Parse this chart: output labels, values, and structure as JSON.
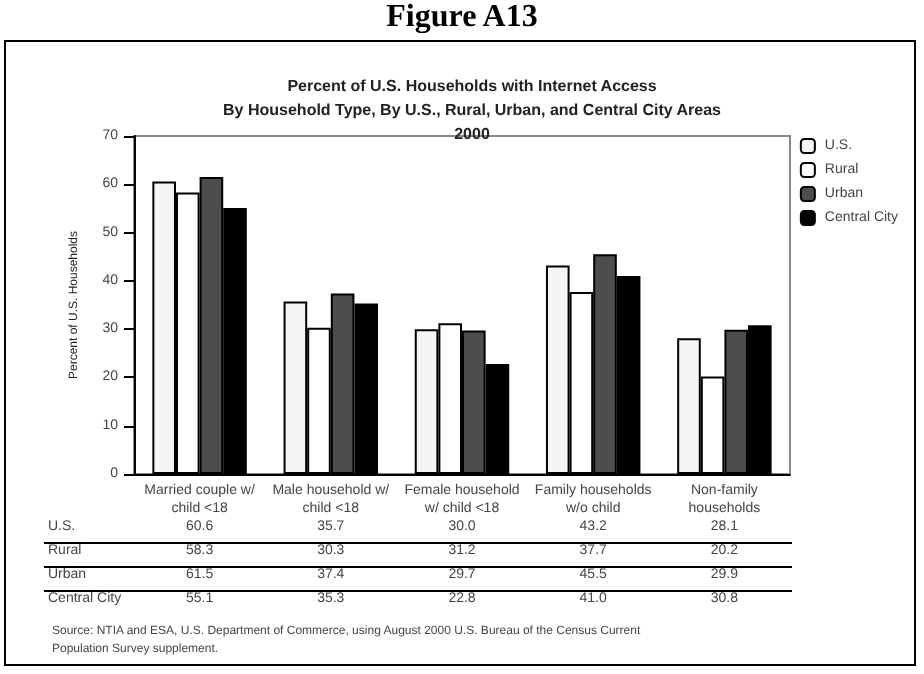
{
  "chart_data": {
    "type": "bar",
    "title": "Figure A13",
    "subtitle": "Percent of U.S. Households with Internet Access\nBy Household Type, By U.S., Rural, Urban, and Central City Areas\n2000",
    "ylabel": "Percent of U.S. Households",
    "categories": [
      "Married couple w/ child <18",
      "Male household w/ child <18",
      "Female household w/ child <18",
      "Family households w/o child",
      "Non-family households"
    ],
    "series": [
      {
        "name": "U.S.",
        "color": "#f5f5f5",
        "values": [
          60.6,
          35.7,
          30.0,
          43.2,
          28.1
        ],
        "value_labels": [
          "60.6",
          "35.7",
          "30.0",
          "43.2",
          "28.1"
        ]
      },
      {
        "name": "Rural",
        "color": "#ffffff",
        "values": [
          58.3,
          30.3,
          31.2,
          37.7,
          20.2
        ],
        "value_labels": [
          "58.3",
          "30.3",
          "31.2",
          "37.7",
          "20.2"
        ]
      },
      {
        "name": "Urban",
        "color": "#4d4d4d",
        "values": [
          61.5,
          37.4,
          29.7,
          45.5,
          29.9
        ],
        "value_labels": [
          "61.5",
          "37.4",
          "29.7",
          "45.5",
          "29.9"
        ]
      },
      {
        "name": "Central City",
        "color": "#000000",
        "values": [
          55.1,
          35.3,
          22.8,
          41.0,
          30.8
        ],
        "value_labels": [
          "55.1",
          "35.3",
          "22.8",
          "41.0",
          "30.8"
        ]
      }
    ],
    "ylim": [
      0,
      70
    ],
    "yticks": [
      0,
      10,
      20,
      30,
      40,
      50,
      60,
      70
    ],
    "grid": false,
    "legend": "top right",
    "annotations": [
      "Source: NTIA and ESA, U.S. Department of Commerce, using August 2000 U.S. Bureau of the Census Current Population Survey supplement."
    ]
  }
}
